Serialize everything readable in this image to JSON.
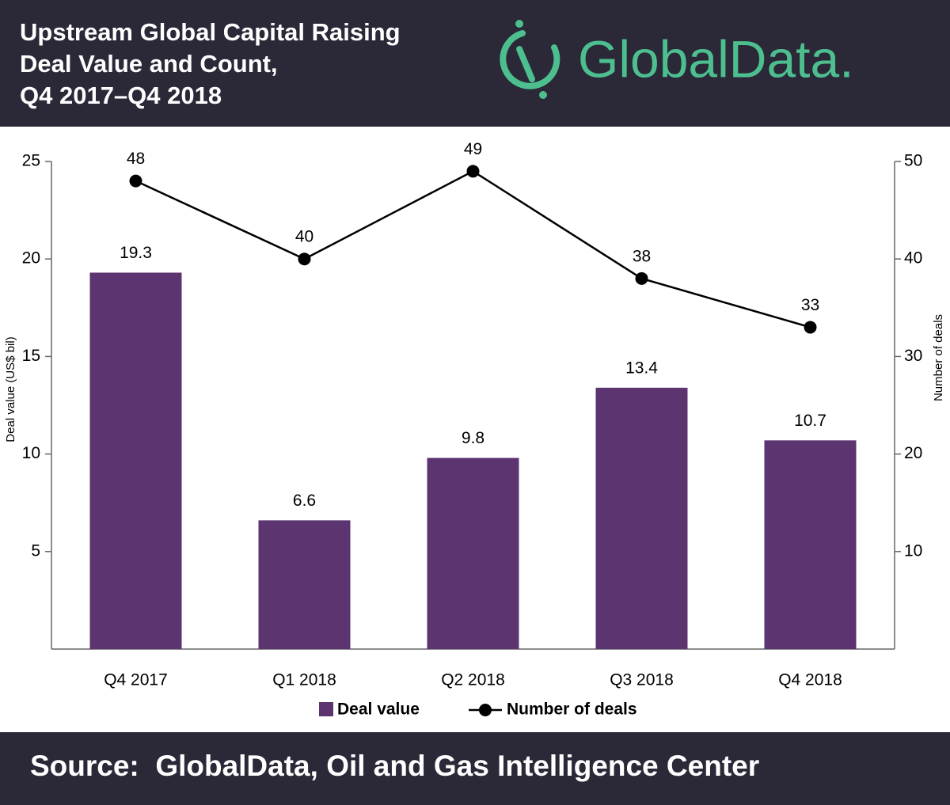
{
  "chart_data": {
    "type": "bar",
    "title": [
      "Upstream Global Capital Raising",
      "Deal Value and Count,",
      "Q4 2017–Q4 2018"
    ],
    "logo": "GlobalData.",
    "source": "Source:  GlobalData, Oil and Gas Intelligence Center",
    "ylabel": "Deal value (US$ bil)",
    "y2label": "Number of deals",
    "categories": [
      "Q4 2017",
      "Q1 2018",
      "Q2 2018",
      "Q3 2018",
      "Q4 2018"
    ],
    "series": [
      {
        "name": "Deal value",
        "type": "bar",
        "color": "#5b3470",
        "values": [
          19.3,
          6.6,
          9.8,
          13.4,
          10.7
        ]
      },
      {
        "name": "Number of deals",
        "type": "line",
        "axis": "y2",
        "color": "#000000",
        "values": [
          48,
          40,
          49,
          38,
          33
        ]
      }
    ],
    "ylim": [
      0,
      25
    ],
    "yticks": [
      5,
      10,
      15,
      20,
      25
    ],
    "y2lim": [
      0,
      50
    ],
    "y2ticks": [
      10,
      20,
      30,
      40,
      50
    ],
    "grid": false,
    "legend": "bottom"
  }
}
